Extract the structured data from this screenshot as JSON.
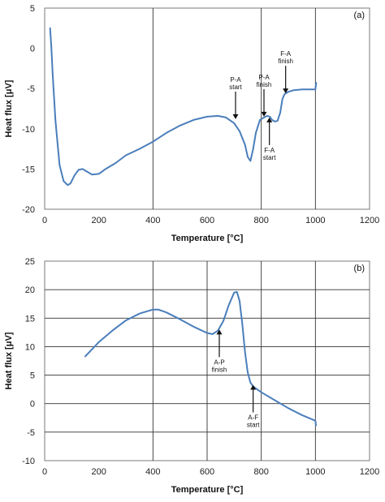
{
  "chart_data": [
    {
      "type": "line",
      "panel_label": "(a)",
      "xlabel": "Temperature [°C]",
      "ylabel": "Heat flux [μV]",
      "xlim": [
        0,
        1200
      ],
      "ylim": [
        -20,
        5
      ],
      "x_ticks": [
        0,
        200,
        400,
        600,
        800,
        1000,
        1200
      ],
      "y_ticks": [
        -20,
        -15,
        -10,
        -5,
        0,
        5
      ],
      "grid": {
        "vertical_at": [
          400,
          800,
          1000
        ],
        "horizontal_at": []
      },
      "line_color": "#4a7ebb",
      "series": [
        {
          "x": [
            20,
            25,
            30,
            40,
            55,
            70,
            85,
            95,
            110,
            125,
            140,
            155,
            175,
            200,
            225,
            260,
            300,
            350,
            400,
            450,
            500,
            550,
            600,
            640,
            670,
            700,
            720,
            740,
            750,
            760,
            770,
            780,
            795,
            810,
            822,
            832,
            840,
            850,
            860,
            870,
            878,
            886,
            900,
            920,
            950,
            980,
            1000,
            1003
          ],
          "y": [
            2.5,
            0,
            -3.5,
            -9,
            -14.5,
            -16.5,
            -17.0,
            -16.8,
            -15.8,
            -15.1,
            -15.0,
            -15.3,
            -15.7,
            -15.6,
            -15.0,
            -14.3,
            -13.3,
            -12.5,
            -11.6,
            -10.5,
            -9.6,
            -8.9,
            -8.5,
            -8.4,
            -8.6,
            -9.3,
            -10.3,
            -12.0,
            -13.5,
            -14.0,
            -12.5,
            -10.5,
            -8.9,
            -8.6,
            -8.4,
            -8.5,
            -8.9,
            -9.1,
            -9.0,
            -8.0,
            -6.3,
            -5.7,
            -5.4,
            -5.2,
            -5.1,
            -5.1,
            -5.1,
            -4.3
          ]
        }
      ],
      "annotations": [
        {
          "text": [
            "P-A",
            "start"
          ],
          "x": 705,
          "y": -8.8,
          "arrow": "down"
        },
        {
          "text": [
            "P-A",
            "finish"
          ],
          "x": 810,
          "y": -8.5,
          "arrow": "down"
        },
        {
          "text": [
            "F-A",
            "start"
          ],
          "x": 830,
          "y": -8.6,
          "arrow": "up"
        },
        {
          "text": [
            "F-A",
            "finish"
          ],
          "x": 890,
          "y": -5.6,
          "arrow": "down"
        }
      ]
    },
    {
      "type": "line",
      "panel_label": "(b)",
      "xlabel": "Temperature [°C]",
      "ylabel": "Heat flux [μV]",
      "xlim": [
        0,
        1200
      ],
      "ylim": [
        -10,
        25
      ],
      "x_ticks": [
        0,
        200,
        400,
        600,
        800,
        1000,
        1200
      ],
      "y_ticks": [
        -10,
        -5,
        0,
        5,
        10,
        15,
        20,
        25
      ],
      "grid": {
        "vertical_at": [
          400,
          600,
          800,
          1000
        ],
        "horizontal_at": [
          -5,
          0,
          5,
          10,
          15,
          20
        ]
      },
      "line_color": "#4a7ebb",
      "series": [
        {
          "x": [
            150,
            200,
            250,
            300,
            350,
            400,
            420,
            450,
            500,
            550,
            600,
            620,
            640,
            660,
            680,
            700,
            710,
            720,
            730,
            740,
            750,
            760,
            770,
            800,
            850,
            900,
            950,
            1000,
            1002
          ],
          "y": [
            8.3,
            10.8,
            12.8,
            14.6,
            15.8,
            16.5,
            16.5,
            16.0,
            14.8,
            13.5,
            12.4,
            12.2,
            12.8,
            14.5,
            17.3,
            19.5,
            19.6,
            18.0,
            14.0,
            9.0,
            5.5,
            3.7,
            3.0,
            2.0,
            0.6,
            -0.8,
            -2.0,
            -3.0,
            -3.8
          ]
        }
      ],
      "annotations": [
        {
          "text": [
            "A-P",
            "finish"
          ],
          "x": 645,
          "y": 13.0,
          "arrow": "up"
        },
        {
          "text": [
            "A-F",
            "start"
          ],
          "x": 770,
          "y": 3.3,
          "arrow": "up"
        }
      ]
    }
  ]
}
